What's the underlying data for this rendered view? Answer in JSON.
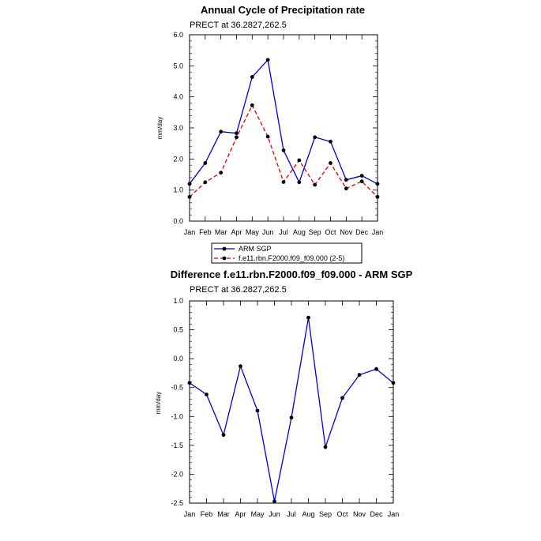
{
  "chart_data": [
    {
      "type": "line",
      "title": "Annual Cycle of Precipitation rate",
      "subtitle": "PRECT at 36.2827,262.5",
      "ylabel": "mm/day",
      "xlabel": "",
      "categories": [
        "Jan",
        "Feb",
        "Mar",
        "Apr",
        "May",
        "Jun",
        "Jul",
        "Aug",
        "Sep",
        "Oct",
        "Nov",
        "Dec",
        "Jan"
      ],
      "ylim": [
        0.0,
        6.0
      ],
      "yticks": [
        "0.0",
        "1.0",
        "2.0",
        "3.0",
        "4.0",
        "5.0",
        "6.0"
      ],
      "ytick_values": [
        0,
        1,
        2,
        3,
        4,
        5,
        6
      ],
      "grid": false,
      "legend_position": "bottom",
      "series": [
        {
          "name": "ARM SGP",
          "color": "#0000cc",
          "dash": "solid",
          "values": [
            1.2,
            1.87,
            2.88,
            2.83,
            4.64,
            5.19,
            2.28,
            1.25,
            2.7,
            2.56,
            1.33,
            1.46,
            1.2
          ]
        },
        {
          "name": "f.e11.rbn.F2000.f09_f09.000 (2-5)",
          "color": "#dd0000",
          "dash": "dashed",
          "values": [
            0.78,
            1.25,
            1.56,
            2.7,
            3.73,
            2.72,
            1.26,
            1.96,
            1.17,
            1.87,
            1.05,
            1.28,
            0.78
          ]
        }
      ]
    },
    {
      "type": "line",
      "title": "Difference f.e11.rbn.F2000.f09_f09.000 - ARM SGP",
      "subtitle": "PRECT at 36.2827,262.5",
      "ylabel": "mm/day",
      "xlabel": "",
      "categories": [
        "Jan",
        "Feb",
        "Mar",
        "Apr",
        "May",
        "Jun",
        "Jul",
        "Aug",
        "Sep",
        "Oct",
        "Nov",
        "Dec",
        "Jan"
      ],
      "ylim": [
        -2.5,
        1.0
      ],
      "yticks": [
        "-2.5",
        "-2.0",
        "-1.5",
        "-1.0",
        "-0.5",
        "0.0",
        "0.5",
        "1.0"
      ],
      "ytick_values": [
        -2.5,
        -2.0,
        -1.5,
        -1.0,
        -0.5,
        0.0,
        0.5,
        1.0
      ],
      "grid": false,
      "series": [
        {
          "color": "#0000cc",
          "dash": "solid",
          "values": [
            -0.42,
            -0.62,
            -1.32,
            -0.13,
            -0.9,
            -2.47,
            -1.02,
            0.71,
            -1.53,
            -0.68,
            -0.28,
            -0.18,
            -0.42
          ]
        }
      ]
    }
  ]
}
